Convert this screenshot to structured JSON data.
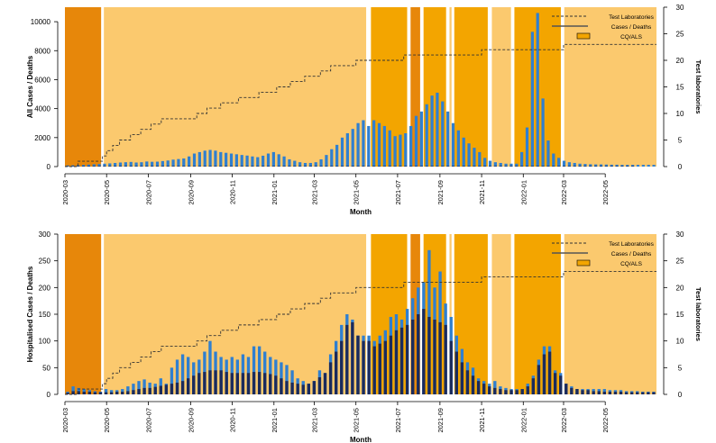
{
  "colors": {
    "band_light": "#fbc96e",
    "band_mid": "#f3a500",
    "band_dark": "#e7870a",
    "cases": "#2f7fd0",
    "deaths": "#1a2a5c",
    "step": "#333333"
  },
  "chart_data": [
    {
      "type": "bar",
      "ylabel": "All Cases / Deaths",
      "y2label": "Test laboratories",
      "xlabel": "Month",
      "ylim": [
        0,
        11000
      ],
      "yticks": [
        0,
        2000,
        4000,
        6000,
        8000,
        10000
      ],
      "y2lim": [
        0,
        30
      ],
      "y2ticks": [
        0,
        5,
        10,
        15,
        20,
        25,
        30
      ],
      "legend": {
        "position": "top-right",
        "items": [
          "Test Laboratories",
          "Cases / Deaths",
          "CQ/ALS"
        ]
      },
      "cases": [
        80,
        90,
        100,
        120,
        140,
        160,
        180,
        200,
        220,
        250,
        280,
        300,
        320,
        280,
        300,
        350,
        330,
        340,
        380,
        420,
        480,
        520,
        560,
        700,
        900,
        1000,
        1100,
        1150,
        1100,
        1000,
        950,
        900,
        850,
        800,
        760,
        700,
        650,
        750,
        900,
        1000,
        850,
        700,
        500,
        400,
        300,
        250,
        250,
        300,
        500,
        800,
        1200,
        1500,
        2000,
        2300,
        2600,
        3000,
        3200,
        2800,
        3200,
        3000,
        2800,
        2500,
        2100,
        2200,
        2300,
        2800,
        3500,
        3800,
        4300,
        4900,
        5100,
        4500,
        3800,
        3000,
        2500,
        2000,
        1600,
        1300,
        1000,
        600,
        400,
        300,
        250,
        200,
        200,
        200,
        1000,
        2700,
        9300,
        10600,
        4700,
        1800,
        900,
        600,
        400,
        300,
        250,
        200,
        180,
        160,
        150,
        150,
        140,
        130,
        130,
        120,
        120,
        120,
        120,
        120,
        120,
        120
      ],
      "deaths": [
        40,
        40,
        40,
        40,
        40,
        40,
        40,
        40,
        40,
        40,
        40,
        40,
        40,
        40,
        40,
        40,
        40,
        40,
        40,
        40,
        40,
        40,
        40,
        40,
        40,
        40,
        40,
        40,
        40,
        40,
        40,
        40,
        40,
        40,
        40,
        40,
        40,
        40,
        40,
        40,
        40,
        40,
        40,
        40,
        40,
        40,
        40,
        40,
        40,
        40,
        40,
        40,
        40,
        40,
        40,
        40,
        40,
        40,
        40,
        40,
        40,
        40,
        40,
        40,
        40,
        40,
        40,
        40,
        40,
        40,
        40,
        40,
        40,
        40,
        40,
        40,
        40,
        40,
        40,
        40,
        40,
        40,
        40,
        40,
        40,
        40,
        40,
        40,
        40,
        40,
        40,
        40,
        40,
        40,
        40,
        40,
        40,
        40,
        40,
        40,
        40,
        40,
        40,
        40,
        40,
        40,
        40,
        40
      ]
    },
    {
      "type": "bar",
      "ylabel": "Hospitalised Cases / Deaths",
      "y2label": "Test laboratories",
      "xlabel": "Month",
      "ylim": [
        0,
        300
      ],
      "yticks": [
        0,
        50,
        100,
        150,
        200,
        250,
        300
      ],
      "y2lim": [
        0,
        30
      ],
      "y2ticks": [
        0,
        5,
        10,
        15,
        20,
        25,
        30
      ],
      "legend": {
        "position": "top-right",
        "items": [
          "Test Laboratories",
          "Cases / Deaths",
          "CQ/ALS"
        ]
      },
      "cases": [
        5,
        15,
        12,
        10,
        8,
        6,
        5,
        10,
        8,
        8,
        10,
        15,
        20,
        25,
        28,
        22,
        20,
        30,
        20,
        50,
        65,
        75,
        70,
        60,
        65,
        80,
        100,
        80,
        70,
        65,
        70,
        65,
        75,
        70,
        90,
        90,
        80,
        70,
        65,
        60,
        55,
        45,
        30,
        25,
        20,
        25,
        45,
        40,
        75,
        100,
        130,
        150,
        140,
        110,
        110,
        110,
        100,
        110,
        120,
        145,
        150,
        140,
        160,
        180,
        200,
        210,
        270,
        200,
        230,
        170,
        145,
        110,
        85,
        60,
        50,
        30,
        25,
        20,
        25,
        15,
        12,
        10,
        10,
        10,
        20,
        35,
        65,
        90,
        90,
        45,
        40,
        20,
        15,
        10,
        10,
        10,
        10,
        10,
        10,
        8,
        8,
        8,
        6,
        6,
        6,
        5,
        5,
        5
      ],
      "deaths": [
        3,
        6,
        6,
        5,
        5,
        4,
        4,
        4,
        4,
        5,
        5,
        6,
        8,
        10,
        12,
        12,
        14,
        16,
        18,
        20,
        22,
        25,
        30,
        35,
        40,
        42,
        45,
        45,
        45,
        42,
        40,
        40,
        40,
        40,
        42,
        42,
        40,
        38,
        35,
        30,
        25,
        22,
        20,
        18,
        20,
        25,
        32,
        40,
        60,
        80,
        100,
        130,
        135,
        110,
        100,
        100,
        90,
        95,
        100,
        110,
        120,
        125,
        130,
        140,
        150,
        160,
        145,
        140,
        135,
        130,
        100,
        80,
        60,
        45,
        35,
        25,
        20,
        15,
        12,
        10,
        8,
        8,
        8,
        10,
        15,
        30,
        55,
        75,
        80,
        40,
        35,
        20,
        12,
        10,
        8,
        8,
        6,
        6,
        5,
        5,
        5,
        5,
        4,
        4,
        4,
        4,
        4,
        4
      ]
    }
  ],
  "shared": {
    "x_start": "2020-03-01",
    "x_end": "2022-07-15",
    "xticks": [
      "2020-03",
      "2020-05",
      "2020-07",
      "2020-09",
      "2020-11",
      "2021-01",
      "2021-03",
      "2021-05",
      "2021-07",
      "2021-09",
      "2021-11",
      "2022-01",
      "2022-03",
      "2022-05"
    ],
    "bands": [
      {
        "start": "2020-03-01",
        "end": "2020-04-23",
        "level": "dark"
      },
      {
        "start": "2020-04-27",
        "end": "2021-05-16",
        "level": "light"
      },
      {
        "start": "2021-05-23",
        "end": "2021-07-15",
        "level": "mid"
      },
      {
        "start": "2021-07-20",
        "end": "2021-08-03",
        "level": "dark"
      },
      {
        "start": "2021-08-08",
        "end": "2021-09-10",
        "level": "mid"
      },
      {
        "start": "2021-09-15",
        "end": "2021-09-18",
        "level": "light"
      },
      {
        "start": "2021-09-22",
        "end": "2021-11-10",
        "level": "mid"
      },
      {
        "start": "2021-11-16",
        "end": "2021-12-14",
        "level": "light"
      },
      {
        "start": "2021-12-19",
        "end": "2022-02-25",
        "level": "mid"
      },
      {
        "start": "2022-03-02",
        "end": "2022-07-15",
        "level": "light"
      }
    ],
    "test_laboratories": [
      {
        "date": "2020-03-01",
        "value": 0
      },
      {
        "date": "2020-03-20",
        "value": 1
      },
      {
        "date": "2020-04-25",
        "value": 2
      },
      {
        "date": "2020-05-01",
        "value": 3
      },
      {
        "date": "2020-05-10",
        "value": 4
      },
      {
        "date": "2020-05-20",
        "value": 5
      },
      {
        "date": "2020-06-05",
        "value": 6
      },
      {
        "date": "2020-06-20",
        "value": 7
      },
      {
        "date": "2020-07-05",
        "value": 8
      },
      {
        "date": "2020-07-20",
        "value": 9
      },
      {
        "date": "2020-09-10",
        "value": 10
      },
      {
        "date": "2020-09-25",
        "value": 11
      },
      {
        "date": "2020-10-15",
        "value": 12
      },
      {
        "date": "2020-11-10",
        "value": 13
      },
      {
        "date": "2020-12-10",
        "value": 14
      },
      {
        "date": "2021-01-05",
        "value": 15
      },
      {
        "date": "2021-01-25",
        "value": 16
      },
      {
        "date": "2021-02-15",
        "value": 17
      },
      {
        "date": "2021-03-10",
        "value": 18
      },
      {
        "date": "2021-03-25",
        "value": 19
      },
      {
        "date": "2021-05-01",
        "value": 20
      },
      {
        "date": "2021-07-10",
        "value": 21
      },
      {
        "date": "2021-11-01",
        "value": 22
      },
      {
        "date": "2022-03-01",
        "value": 23
      }
    ]
  }
}
